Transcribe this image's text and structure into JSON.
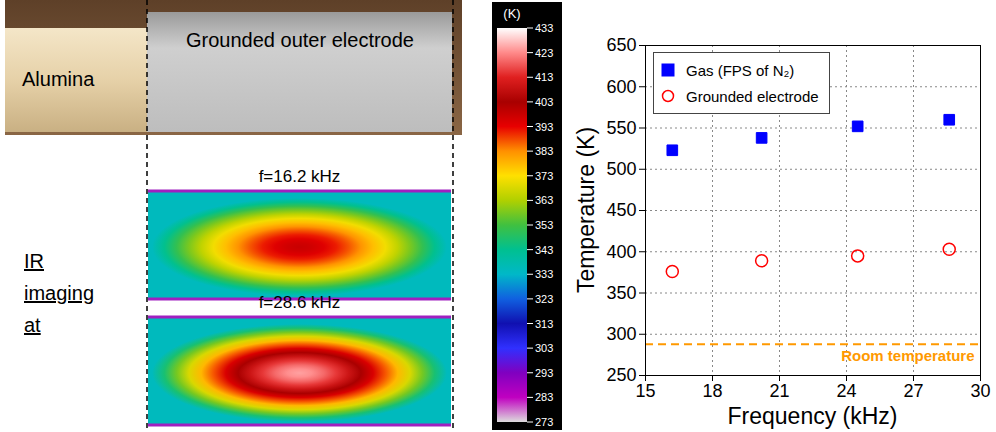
{
  "ir_panel": {
    "photo_labels": [
      "Alumina",
      "Grounded outer electrode"
    ],
    "side_label": "IR imaging at",
    "images": [
      {
        "title": "f=16.2 kHz",
        "max_temperature": 398,
        "min_temperature": 335
      },
      {
        "title": "f=28.6 kHz",
        "max_temperature": 425,
        "min_temperature": 335
      }
    ],
    "colorbar": {
      "label": "(K)",
      "range": [
        273,
        433
      ],
      "ticks": [
        273,
        283,
        293,
        303,
        313,
        323,
        333,
        343,
        353,
        363,
        373,
        383,
        393,
        403,
        413,
        423,
        433
      ]
    }
  },
  "chart_data": {
    "type": "scatter",
    "xlabel": "Frequency (kHz)",
    "ylabel": "Temperature (K)",
    "x": [
      16.2,
      20.2,
      24.5,
      28.6
    ],
    "series": [
      {
        "name": "Gas (FPS of N₂)",
        "color": "#0000ff",
        "marker": "square",
        "values": [
          523,
          538,
          552,
          560
        ]
      },
      {
        "name": "Grounded electrode",
        "color": "#ff0000",
        "marker": "circle-open",
        "values": [
          376,
          389,
          395,
          403
        ]
      }
    ],
    "xlim": [
      15,
      30
    ],
    "xticks": [
      15,
      18,
      21,
      24,
      27,
      30
    ],
    "ylim": [
      250,
      650
    ],
    "yticks": [
      250,
      300,
      350,
      400,
      450,
      500,
      550,
      600,
      650
    ],
    "grid": true,
    "legend": "upper left",
    "annotations": [
      {
        "type": "hline",
        "value": 288,
        "label": "Room temperature",
        "color": "#ff9900",
        "line_style": "dashed"
      }
    ]
  }
}
